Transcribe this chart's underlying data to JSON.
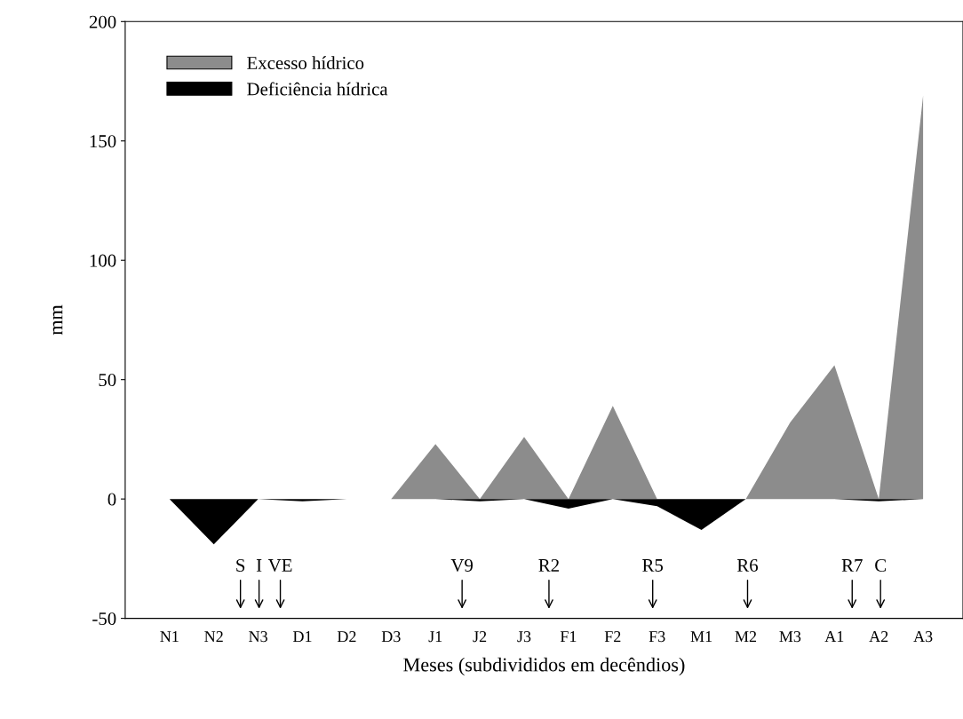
{
  "chart_data": {
    "type": "area",
    "xlabel": "Meses (subdivididos em decêndios)",
    "ylabel": "mm",
    "categories": [
      "N1",
      "N2",
      "N3",
      "D1",
      "D2",
      "D3",
      "J1",
      "J2",
      "J3",
      "F1",
      "F2",
      "F3",
      "M1",
      "M2",
      "M3",
      "A1",
      "A2",
      "A3"
    ],
    "series": [
      {
        "name": "Excesso hídrico",
        "color": "#8c8c8c",
        "values": [
          0,
          0,
          0,
          0,
          0,
          0,
          23,
          0,
          26,
          0,
          39,
          0,
          0,
          0,
          32,
          56,
          0,
          169
        ]
      },
      {
        "name": "Deficiência hídrica",
        "color": "#000000",
        "values": [
          0,
          -19,
          0,
          -1,
          0,
          0,
          0,
          -1,
          0,
          -4,
          0,
          -3,
          -13,
          0,
          0,
          0,
          -1,
          0
        ]
      }
    ],
    "ylim": [
      -50,
      200
    ],
    "yticks": [
      -50,
      0,
      50,
      100,
      150,
      200
    ],
    "grid": false,
    "legend": "top left",
    "annotations": [
      "S",
      "I",
      "VE",
      "V9",
      "R2",
      "R5",
      "R6",
      "R7",
      "C"
    ]
  }
}
